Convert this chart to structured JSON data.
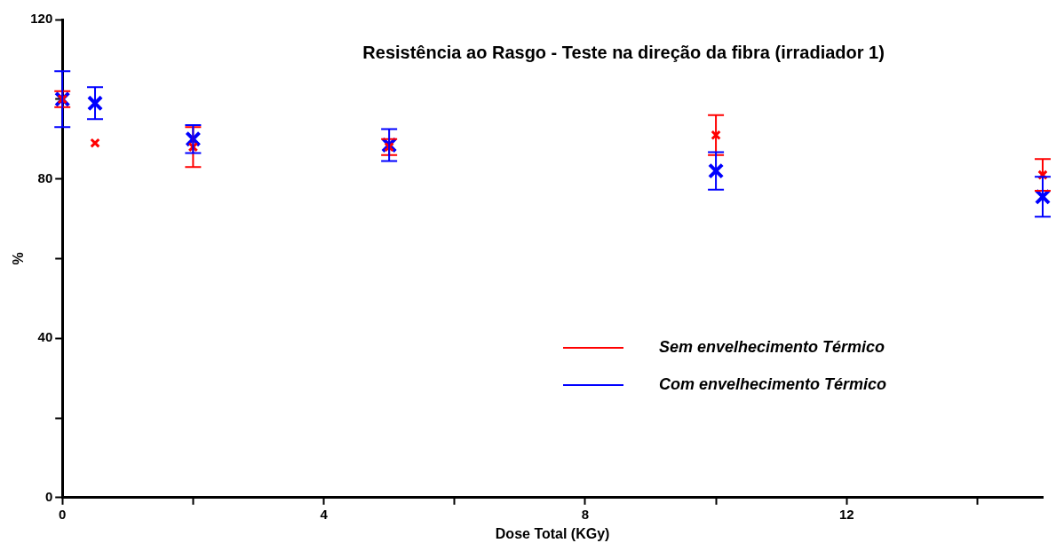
{
  "chart_data": {
    "type": "scatter",
    "title": "Resistência ao Rasgo - Teste na direção da fibra (irradiador 1)",
    "xlabel": "Dose Total (KGy)",
    "ylabel": "%",
    "x": [
      0,
      0.5,
      2,
      5,
      10,
      15
    ],
    "series": [
      {
        "name": "Sem envelhecimento Térmico",
        "color": "#ff0000",
        "values": [
          100,
          89,
          88,
          88,
          91,
          81
        ],
        "errors": [
          2,
          null,
          5,
          2,
          5,
          4
        ]
      },
      {
        "name": "Com envelhecimento Térmico",
        "color": "#0000ff",
        "values": [
          100,
          99,
          90,
          88.5,
          82,
          75.5
        ],
        "errors": [
          7,
          4,
          3.5,
          4,
          4.7,
          5
        ]
      }
    ],
    "xlim": [
      0,
      15
    ],
    "xticks": [
      0,
      {
        "value": 2,
        "label": null
      },
      4,
      {
        "value": 6,
        "label": null
      },
      8,
      {
        "value": 10,
        "label": null
      },
      12,
      {
        "value": 14,
        "label": null
      }
    ],
    "ylim": [
      0,
      120
    ],
    "yticks": [
      0,
      {
        "value": 20,
        "label": null
      },
      40,
      {
        "value": 60,
        "label": null
      },
      80,
      {
        "value": 100,
        "label": null
      },
      120
    ],
    "grid": false,
    "legend": "right",
    "marker": "cross"
  }
}
